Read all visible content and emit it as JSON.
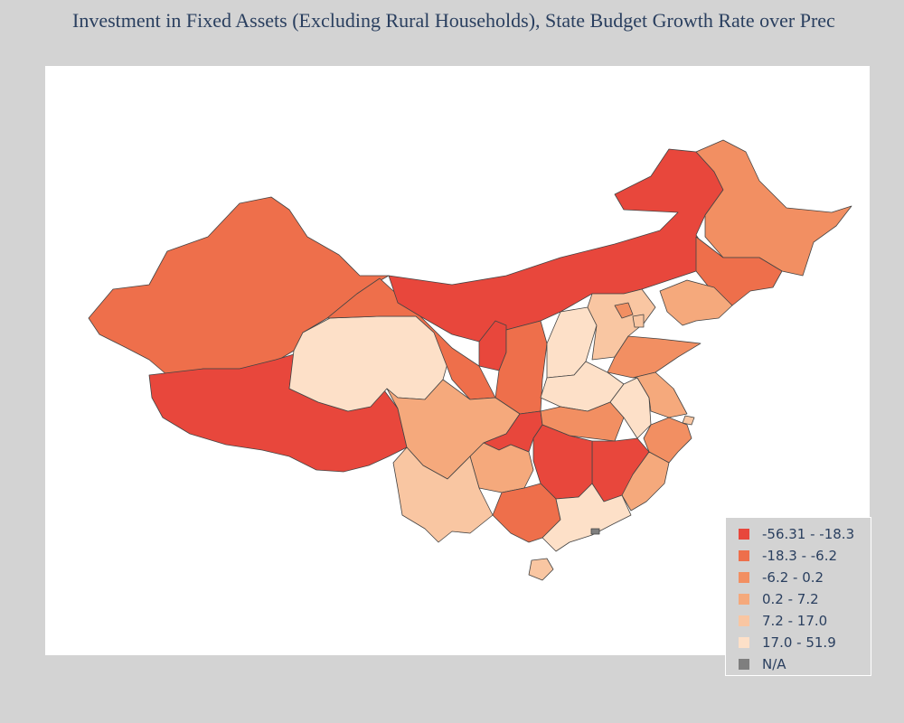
{
  "title": "Investment in Fixed Assets (Excluding Rural Households), State Budget Growth Rate over Prec",
  "colors": {
    "bin1": "#e8473c",
    "bin2": "#ee6f4b",
    "bin3": "#f28f62",
    "bin4": "#f5a97c",
    "bin5": "#f9c6a2",
    "bin6": "#fde0c8",
    "na": "#7f7f7f",
    "border": "#444444",
    "background": "#d3d3d3"
  },
  "legend": [
    {
      "label": "-56.31 - -18.3",
      "color": "#e8473c"
    },
    {
      "label": "-18.3 - -6.2",
      "color": "#ee6f4b"
    },
    {
      "label": "-6.2 - 0.2",
      "color": "#f28f62"
    },
    {
      "label": "0.2 - 7.2",
      "color": "#f5a97c"
    },
    {
      "label": "7.2 - 17.0",
      "color": "#f9c6a2"
    },
    {
      "label": "17.0 - 51.9",
      "color": "#fde0c8"
    },
    {
      "label": "N/A",
      "color": "#7f7f7f"
    }
  ],
  "legend_placement": "bottom-right",
  "map_type": "choropleth"
}
